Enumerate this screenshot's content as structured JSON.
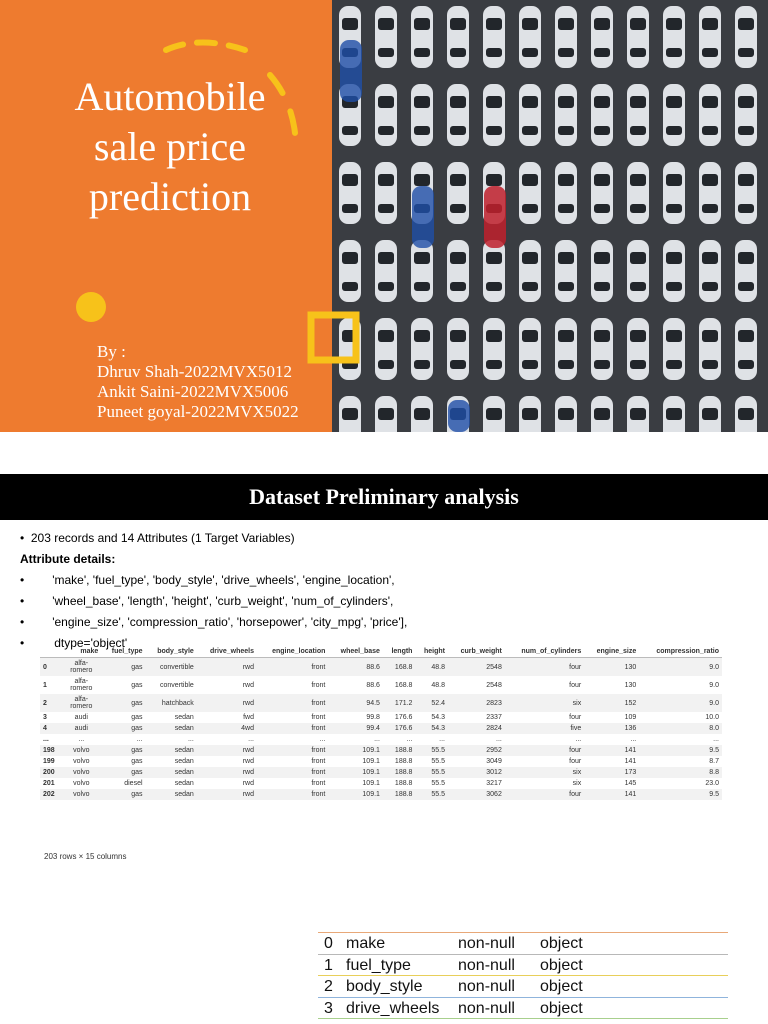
{
  "slide1": {
    "title": "Automobile sale price prediction",
    "by": "By :",
    "authors": [
      "Dhruv Shah-2022MVX5012",
      "Ankit Saini-2022MVX5006",
      "Puneet goyal-2022MVX5022"
    ]
  },
  "slide2": {
    "title": "Dataset Preliminary analysis",
    "summary": "203 records and 14 Attributes (1 Target Variables)",
    "details_heading": "Attribute details:",
    "bullets": [
      "'make', 'fuel_type', 'body_style', 'drive_wheels', 'engine_location',",
      "'wheel_base', 'length', 'height', 'curb_weight', 'num_of_cylinders',",
      "'engine_size', 'compression_ratio', 'horsepower', 'city_mpg', 'price'],",
      "dtype='object'"
    ],
    "table": {
      "columns": [
        "make",
        "fuel_type",
        "body_style",
        "drive_wheels",
        "engine_location",
        "wheel_base",
        "length",
        "height",
        "curb_weight",
        "num_of_cylinders",
        "engine_size",
        "compression_ratio"
      ],
      "rows": [
        [
          "0",
          "alfa-romero",
          "gas",
          "convertible",
          "rwd",
          "front",
          "88.6",
          "168.8",
          "48.8",
          "2548",
          "four",
          "130",
          "9.0"
        ],
        [
          "1",
          "alfa-romero",
          "gas",
          "convertible",
          "rwd",
          "front",
          "88.6",
          "168.8",
          "48.8",
          "2548",
          "four",
          "130",
          "9.0"
        ],
        [
          "2",
          "alfa-romero",
          "gas",
          "hatchback",
          "rwd",
          "front",
          "94.5",
          "171.2",
          "52.4",
          "2823",
          "six",
          "152",
          "9.0"
        ],
        [
          "3",
          "audi",
          "gas",
          "sedan",
          "fwd",
          "front",
          "99.8",
          "176.6",
          "54.3",
          "2337",
          "four",
          "109",
          "10.0"
        ],
        [
          "4",
          "audi",
          "gas",
          "sedan",
          "4wd",
          "front",
          "99.4",
          "176.6",
          "54.3",
          "2824",
          "five",
          "136",
          "8.0"
        ],
        [
          "...",
          "...",
          "...",
          "...",
          "...",
          "...",
          "...",
          "...",
          "...",
          "...",
          "...",
          "...",
          "..."
        ],
        [
          "198",
          "volvo",
          "gas",
          "sedan",
          "rwd",
          "front",
          "109.1",
          "188.8",
          "55.5",
          "2952",
          "four",
          "141",
          "9.5"
        ],
        [
          "199",
          "volvo",
          "gas",
          "sedan",
          "rwd",
          "front",
          "109.1",
          "188.8",
          "55.5",
          "3049",
          "four",
          "141",
          "8.7"
        ],
        [
          "200",
          "volvo",
          "gas",
          "sedan",
          "rwd",
          "front",
          "109.1",
          "188.8",
          "55.5",
          "3012",
          "six",
          "173",
          "8.8"
        ],
        [
          "201",
          "volvo",
          "diesel",
          "sedan",
          "rwd",
          "front",
          "109.1",
          "188.8",
          "55.5",
          "3217",
          "six",
          "145",
          "23.0"
        ],
        [
          "202",
          "volvo",
          "gas",
          "sedan",
          "rwd",
          "front",
          "109.1",
          "188.8",
          "55.5",
          "3062",
          "four",
          "141",
          "9.5"
        ]
      ],
      "footer": "203 rows × 15 columns"
    },
    "info": [
      [
        "0",
        "make",
        "non-null",
        "object"
      ],
      [
        "1",
        "fuel_type",
        "non-null",
        "object"
      ],
      [
        "2",
        "body_style",
        "non-null",
        "object"
      ],
      [
        "3",
        "drive_wheels",
        "non-null",
        "object"
      ]
    ]
  }
}
